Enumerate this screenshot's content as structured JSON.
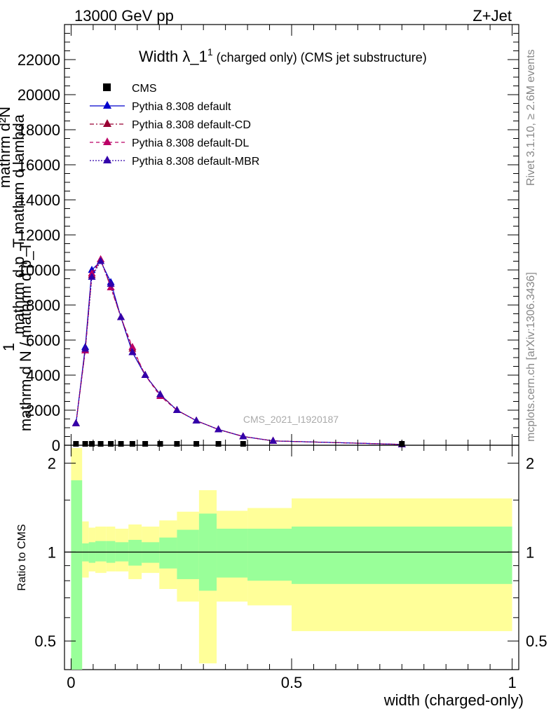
{
  "header": {
    "left": "13000 GeV pp",
    "right": "Z+Jet"
  },
  "side_labels": {
    "rivet": "Rivet 3.1.10, ≥ 2.6M events",
    "mcplots": "mcplots.cern.ch [arXiv:1306.3436]"
  },
  "main": {
    "title_prefix": "Width λ_1",
    "title_sup": "1",
    "title_suffix": " (charged only) (CMS jet substructure)",
    "ylabel_numerator_top": "mathrm d²N",
    "ylabel_numerator_bottom": "mathrm d p_T mathrm d lambda",
    "ylabel_one": "1",
    "ylabel_denominator": "mathrm d N / mathrm d p_T",
    "watermark": "CMS_2021_I1920187",
    "yticks": [
      "0",
      "2000",
      "4000",
      "6000",
      "8000",
      "10000",
      "12000",
      "14000",
      "16000",
      "18000",
      "20000",
      "22000"
    ]
  },
  "legend": [
    {
      "label": "CMS",
      "color": "#000000",
      "marker": "square",
      "dash": ""
    },
    {
      "label": "Pythia 8.308 default",
      "color": "#0000cc",
      "marker": "triangle",
      "dash": ""
    },
    {
      "label": "Pythia 8.308 default-CD",
      "color": "#990033",
      "marker": "triangle",
      "dash": "6,3,2,3"
    },
    {
      "label": "Pythia 8.308 default-DL",
      "color": "#bb0066",
      "marker": "triangle",
      "dash": "5,4"
    },
    {
      "label": "Pythia 8.308 default-MBR",
      "color": "#3300aa",
      "marker": "triangle",
      "dash": "2,2"
    }
  ],
  "ratio": {
    "ylabel": "Ratio to CMS",
    "yticks": [
      "0.5",
      "1",
      "2"
    ]
  },
  "xaxis": {
    "label": "width (charged-only)",
    "ticks": [
      "0",
      "0.5",
      "1"
    ]
  },
  "chart_data": {
    "type": "line",
    "title": "Width λ_1^1 (charged only) (CMS jet substructure)",
    "xlabel": "width (charged-only)",
    "ylabel": "1/(dN/dp_T) d²N/(dp_T dλ)",
    "xlim": [
      -0.015,
      1.015
    ],
    "ylim": [
      0,
      24000
    ],
    "ratio_ylim": [
      0.4,
      2.3
    ],
    "ratio_log": true,
    "bin_edges": [
      0.0,
      0.025,
      0.04,
      0.055,
      0.08,
      0.1,
      0.13,
      0.16,
      0.2,
      0.24,
      0.29,
      0.33,
      0.4,
      0.5,
      1.0
    ],
    "x": [
      0.011,
      0.032,
      0.047,
      0.067,
      0.09,
      0.113,
      0.139,
      0.168,
      0.202,
      0.24,
      0.284,
      0.334,
      0.39,
      0.458,
      0.75
    ],
    "cms_points": {
      "x": [
        0.011,
        0.032,
        0.047,
        0.067,
        0.09,
        0.113,
        0.139,
        0.168,
        0.202,
        0.24,
        0.284,
        0.334,
        0.39,
        0.75
      ],
      "y": [
        0,
        0,
        0,
        0,
        0,
        0,
        0,
        0,
        0,
        0,
        0,
        0,
        0,
        0
      ]
    },
    "series": [
      {
        "name": "Pythia 8.308 default",
        "y": [
          1250,
          5600,
          10000,
          10500,
          9300,
          7300,
          5300,
          4000,
          2900,
          2000,
          1400,
          900,
          500,
          250,
          50
        ]
      },
      {
        "name": "Pythia 8.308 default-CD",
        "y": [
          1250,
          5400,
          9700,
          10600,
          9000,
          7300,
          5500,
          4000,
          2900,
          2000,
          1400,
          900,
          500,
          250,
          50
        ]
      },
      {
        "name": "Pythia 8.308 default-DL",
        "y": [
          1250,
          5400,
          9800,
          10600,
          9000,
          7300,
          5600,
          4000,
          2800,
          2000,
          1400,
          900,
          500,
          250,
          50
        ]
      },
      {
        "name": "Pythia 8.308 default-MBR",
        "y": [
          1250,
          5500,
          9600,
          10500,
          9200,
          7300,
          5300,
          4000,
          2900,
          2000,
          1400,
          900,
          500,
          250,
          50
        ]
      }
    ],
    "uncertainty_bands": {
      "stat_band": {
        "color": "#99ff99",
        "upper": [
          1.75,
          1.07,
          1.08,
          1.09,
          1.09,
          1.08,
          1.1,
          1.08,
          1.12,
          1.19,
          1.35,
          1.2,
          1.2,
          1.22,
          1.55
        ],
        "lower": [
          0.4,
          0.93,
          0.92,
          0.93,
          0.92,
          0.93,
          0.9,
          0.92,
          0.88,
          0.81,
          0.74,
          0.82,
          0.8,
          0.78,
          0.52
        ]
      },
      "total_band": {
        "color": "#ffff99",
        "upper": [
          2.25,
          1.27,
          1.21,
          1.22,
          1.22,
          1.2,
          1.24,
          1.22,
          1.28,
          1.37,
          1.62,
          1.38,
          1.41,
          1.52,
          1.98
        ],
        "lower": [
          0.4,
          0.82,
          0.86,
          0.85,
          0.86,
          0.86,
          0.81,
          0.85,
          0.75,
          0.68,
          0.42,
          0.68,
          0.66,
          0.54,
          0.4
        ]
      }
    }
  }
}
